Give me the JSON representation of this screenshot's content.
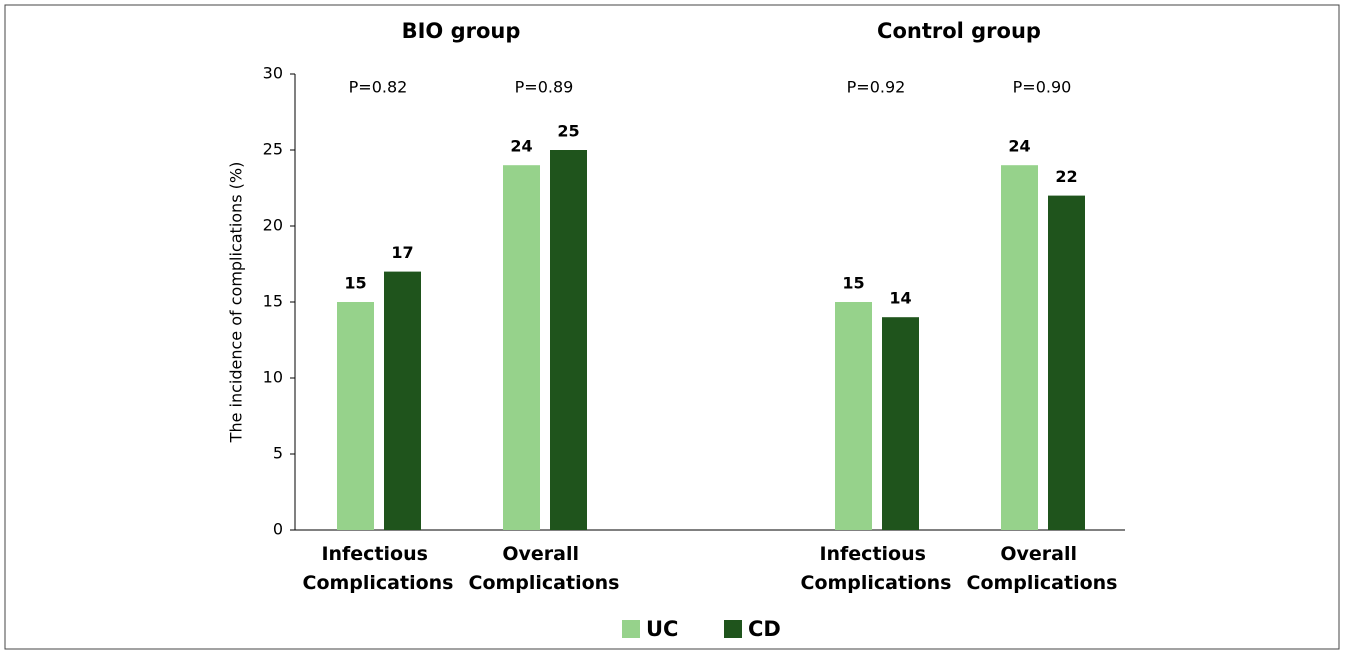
{
  "chart_data": {
    "type": "bar",
    "group_titles": [
      "BIO group",
      "Control group"
    ],
    "categories": [
      "Infectious Complications",
      "Overall Complications",
      "Infectious Complications",
      "Overall Complications"
    ],
    "annotations": [
      "P=0.82",
      "P=0.89",
      "P=0.92",
      "P=0.90"
    ],
    "ylabel": "The incidence of complications (%)",
    "series": [
      {
        "name": "UC",
        "color": "#96d28b",
        "values": [
          15,
          24,
          15,
          24
        ]
      },
      {
        "name": "CD",
        "color": "#1f541c",
        "values": [
          17,
          25,
          14,
          22
        ]
      }
    ],
    "ylim": [
      0,
      30
    ],
    "yticks": [
      0,
      5,
      10,
      15,
      20,
      25,
      30
    ],
    "grid": false,
    "legend": "bottom"
  }
}
